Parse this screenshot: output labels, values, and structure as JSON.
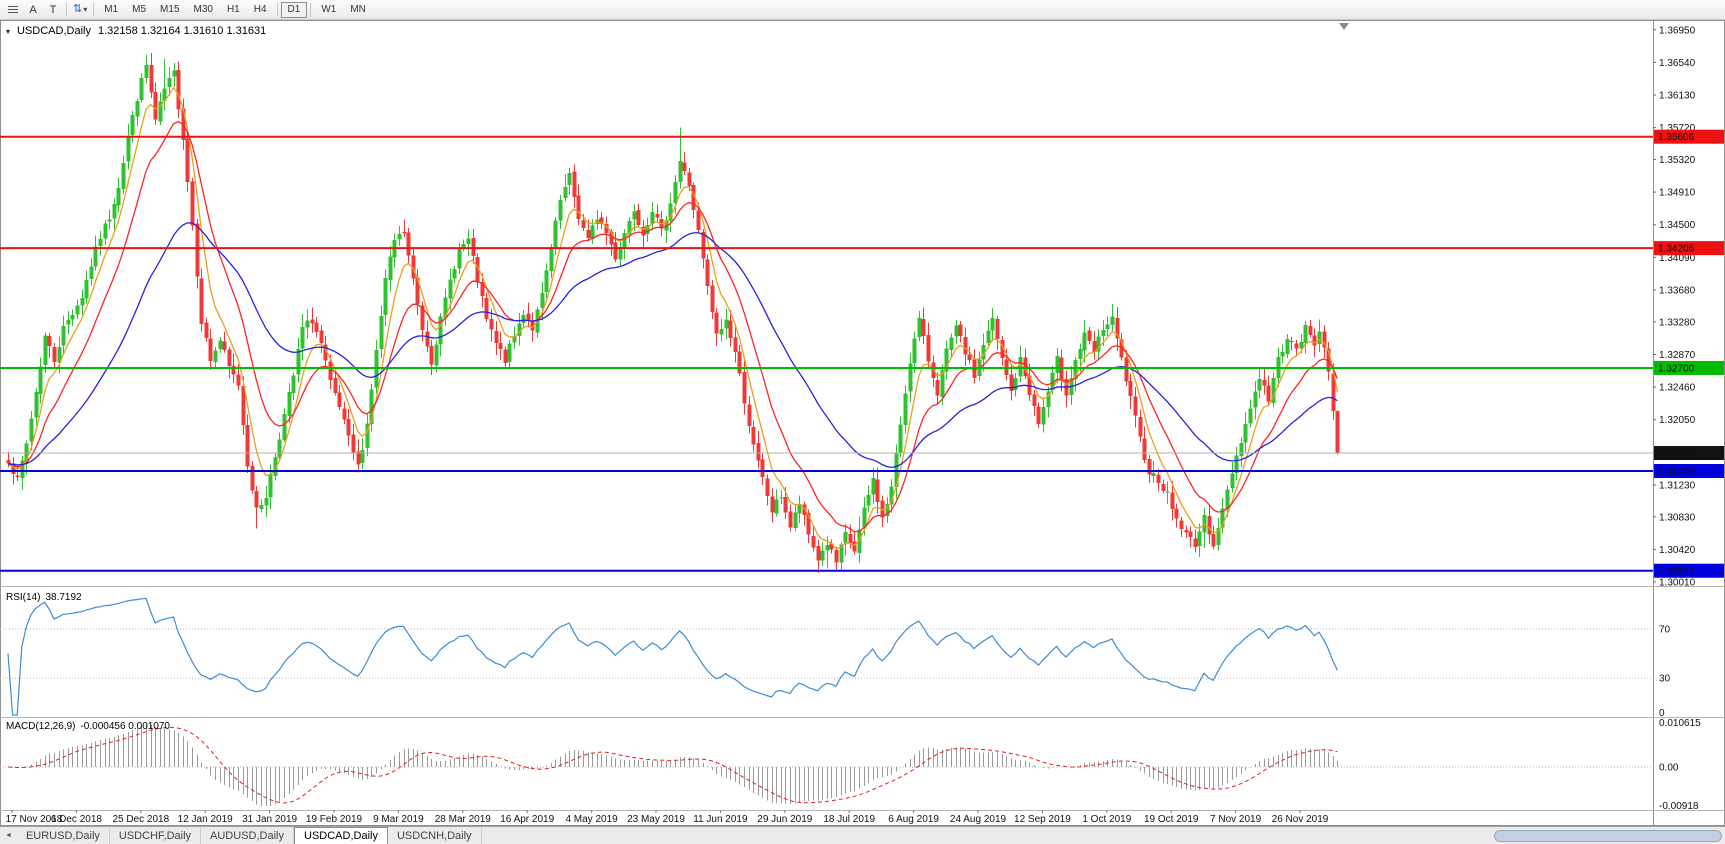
{
  "icons": {
    "cursor_arrows": "⇅",
    "dropdown_caret": "▾",
    "symbol_caret": "▾",
    "tab_nav_left": "◄"
  },
  "toolbar": {
    "tool_a": "A",
    "tool_t": "T",
    "timeframes": [
      "M1",
      "M5",
      "M15",
      "M30",
      "H1",
      "H4",
      "D1",
      "W1",
      "MN"
    ],
    "active_timeframe": "D1"
  },
  "chart": {
    "symbol_period": "USDCAD,Daily",
    "ohlc_text": "1.32158 1.32164 1.31610 1.31631",
    "open": "1.32158",
    "high": "1.32164",
    "low": "1.31610",
    "close": "1.31631"
  },
  "rsi": {
    "name": "RSI(14)",
    "value": "38.7192",
    "scale_labels": [
      "70",
      "30",
      "0"
    ],
    "levels": [
      70,
      30
    ],
    "color": "#3d8bd4"
  },
  "macd": {
    "name": "MACD(12,26,9)",
    "values": "-0.000456 0.001070",
    "scale_labels": [
      "0.010615",
      "0.00",
      "-0.00918"
    ],
    "scale_max": 0.010615,
    "scale_min": -0.00918,
    "hist_color": "#9a9a9a",
    "signal_color": "#e02020"
  },
  "price_axis": {
    "ticks": [
      "1.36950",
      "1.36540",
      "1.36130",
      "1.35720",
      "1.35320",
      "1.34910",
      "1.34500",
      "1.34090",
      "1.33680",
      "1.33280",
      "1.32870",
      "1.32460",
      "1.32050",
      "1.31640",
      "1.31230",
      "1.30830",
      "1.30420",
      "1.30010"
    ]
  },
  "date_axis": {
    "labels": [
      "17 Nov 2018",
      "6 Dec 2018",
      "25 Dec 2018",
      "12 Jan 2019",
      "31 Jan 2019",
      "19 Feb 2019",
      "9 Mar 2019",
      "28 Mar 2019",
      "16 Apr 2019",
      "4 May 2019",
      "23 May 2019",
      "11 Jun 2019",
      "29 Jun 2019",
      "18 Jul 2019",
      "6 Aug 2019",
      "24 Aug 2019",
      "12 Sep 2019",
      "1 Oct 2019",
      "19 Oct 2019",
      "7 Nov 2019",
      "26 Nov 2019"
    ]
  },
  "tabs": {
    "items": [
      "EURUSD,Daily",
      "USDCHF,Daily",
      "AUDUSD,Daily",
      "USDCAD,Daily",
      "USDCNH,Daily"
    ],
    "active_index": 3
  },
  "chart_data": {
    "type": "candlestick",
    "symbol": "USDCAD",
    "period": "Daily",
    "bars": 290,
    "up_color": "#2fc12f",
    "down_color": "#f03838",
    "price_range": {
      "top": 1.3706,
      "bottom": 1.2996
    },
    "levels": [
      {
        "value": 1.35606,
        "label": "1.35606",
        "color": "#ee1111",
        "width": 2
      },
      {
        "value": 1.34206,
        "label": "1.34206",
        "color": "#ee1111",
        "width": 2
      },
      {
        "value": 1.327,
        "label": "1.32700",
        "color": "#00bb00",
        "width": 2
      },
      {
        "value": 1.31405,
        "label": "1.31405",
        "color": "#0000dd",
        "width": 2
      },
      {
        "value": 1.30152,
        "label": "1.30152",
        "color": "#0000dd",
        "width": 2
      }
    ],
    "current_price": {
      "value": 1.31631,
      "label": "1.31631",
      "line_color": "#b0b0b0",
      "flag_color": "#111111"
    },
    "moving_averages": [
      {
        "period": 6,
        "type": "ema",
        "color": "#e8a01e"
      },
      {
        "period": 14,
        "type": "ema",
        "color": "#ff2424"
      },
      {
        "period": 40,
        "type": "ema",
        "color": "#2424dd"
      }
    ],
    "close_anchors": [
      [
        0,
        1.3155
      ],
      [
        2,
        1.3128
      ],
      [
        4,
        1.3175
      ],
      [
        6,
        1.324
      ],
      [
        8,
        1.331
      ],
      [
        10,
        1.328
      ],
      [
        12,
        1.332
      ],
      [
        14,
        1.334
      ],
      [
        16,
        1.336
      ],
      [
        18,
        1.34
      ],
      [
        20,
        1.3435
      ],
      [
        22,
        1.346
      ],
      [
        24,
        1.35
      ],
      [
        26,
        1.356
      ],
      [
        28,
        1.361
      ],
      [
        30,
        1.365
      ],
      [
        32,
        1.358
      ],
      [
        34,
        1.362
      ],
      [
        36,
        1.364
      ],
      [
        38,
        1.356
      ],
      [
        40,
        1.345
      ],
      [
        42,
        1.333
      ],
      [
        44,
        1.328
      ],
      [
        46,
        1.3305
      ],
      [
        48,
        1.327
      ],
      [
        50,
        1.325
      ],
      [
        52,
        1.315
      ],
      [
        54,
        1.309
      ],
      [
        56,
        1.311
      ],
      [
        58,
        1.316
      ],
      [
        60,
        1.321
      ],
      [
        62,
        1.326
      ],
      [
        64,
        1.332
      ],
      [
        66,
        1.333
      ],
      [
        68,
        1.33
      ],
      [
        70,
        1.325
      ],
      [
        72,
        1.322
      ],
      [
        74,
        1.318
      ],
      [
        76,
        1.3145
      ],
      [
        78,
        1.32
      ],
      [
        80,
        1.329
      ],
      [
        82,
        1.338
      ],
      [
        84,
        1.343
      ],
      [
        86,
        1.344
      ],
      [
        88,
        1.338
      ],
      [
        90,
        1.332
      ],
      [
        92,
        1.328
      ],
      [
        94,
        1.333
      ],
      [
        96,
        1.338
      ],
      [
        98,
        1.342
      ],
      [
        100,
        1.343
      ],
      [
        102,
        1.338
      ],
      [
        104,
        1.333
      ],
      [
        106,
        1.33
      ],
      [
        108,
        1.328
      ],
      [
        110,
        1.331
      ],
      [
        112,
        1.334
      ],
      [
        114,
        1.332
      ],
      [
        116,
        1.336
      ],
      [
        118,
        1.342
      ],
      [
        120,
        1.348
      ],
      [
        122,
        1.351
      ],
      [
        124,
        1.346
      ],
      [
        126,
        1.343
      ],
      [
        128,
        1.346
      ],
      [
        130,
        1.344
      ],
      [
        132,
        1.341
      ],
      [
        134,
        1.344
      ],
      [
        136,
        1.347
      ],
      [
        138,
        1.344
      ],
      [
        140,
        1.347
      ],
      [
        142,
        1.344
      ],
      [
        144,
        1.348
      ],
      [
        146,
        1.353
      ],
      [
        148,
        1.35
      ],
      [
        150,
        1.344
      ],
      [
        152,
        1.337
      ],
      [
        154,
        1.331
      ],
      [
        156,
        1.333
      ],
      [
        158,
        1.329
      ],
      [
        160,
        1.323
      ],
      [
        162,
        1.317
      ],
      [
        164,
        1.313
      ],
      [
        166,
        1.309
      ],
      [
        168,
        1.311
      ],
      [
        170,
        1.307
      ],
      [
        172,
        1.31
      ],
      [
        174,
        1.306
      ],
      [
        176,
        1.303
      ],
      [
        178,
        1.305
      ],
      [
        180,
        1.3025
      ],
      [
        182,
        1.306
      ],
      [
        184,
        1.304
      ],
      [
        186,
        1.309
      ],
      [
        188,
        1.313
      ],
      [
        190,
        1.308
      ],
      [
        192,
        1.312
      ],
      [
        194,
        1.32
      ],
      [
        196,
        1.328
      ],
      [
        198,
        1.333
      ],
      [
        200,
        1.328
      ],
      [
        202,
        1.324
      ],
      [
        204,
        1.329
      ],
      [
        206,
        1.332
      ],
      [
        208,
        1.329
      ],
      [
        210,
        1.326
      ],
      [
        212,
        1.33
      ],
      [
        214,
        1.333
      ],
      [
        216,
        1.328
      ],
      [
        218,
        1.324
      ],
      [
        220,
        1.328
      ],
      [
        222,
        1.324
      ],
      [
        224,
        1.32
      ],
      [
        226,
        1.324
      ],
      [
        228,
        1.328
      ],
      [
        230,
        1.324
      ],
      [
        232,
        1.328
      ],
      [
        234,
        1.331
      ],
      [
        236,
        1.329
      ],
      [
        238,
        1.332
      ],
      [
        240,
        1.333
      ],
      [
        242,
        1.328
      ],
      [
        244,
        1.323
      ],
      [
        246,
        1.318
      ],
      [
        248,
        1.314
      ],
      [
        250,
        1.313
      ],
      [
        252,
        1.311
      ],
      [
        254,
        1.308
      ],
      [
        256,
        1.306
      ],
      [
        258,
        1.305
      ],
      [
        260,
        1.308
      ],
      [
        262,
        1.305
      ],
      [
        264,
        1.309
      ],
      [
        266,
        1.314
      ],
      [
        268,
        1.318
      ],
      [
        270,
        1.322
      ],
      [
        272,
        1.326
      ],
      [
        274,
        1.323
      ],
      [
        276,
        1.328
      ],
      [
        278,
        1.331
      ],
      [
        280,
        1.329
      ],
      [
        282,
        1.332
      ],
      [
        284,
        1.33
      ],
      [
        285,
        1.332
      ],
      [
        286,
        1.33
      ],
      [
        287,
        1.326
      ],
      [
        288,
        1.32158
      ],
      [
        289,
        1.31631
      ]
    ],
    "overrides": {
      "30": {
        "h": 1.3664
      },
      "34": {
        "h": 1.3658
      },
      "54": {
        "l": 1.3068
      },
      "122": {
        "h": 1.3521
      },
      "146": {
        "h": 1.3572
      },
      "178": {
        "l": 1.3018
      },
      "180": {
        "l": 1.3016
      },
      "260": {
        "l": 1.3044
      },
      "288": {
        "c": 1.32158
      },
      "289": {
        "o": 1.32158,
        "h": 1.32164,
        "l": 1.3161,
        "c": 1.31631
      }
    },
    "rsi": {
      "period": 14,
      "last": 38.7192
    },
    "macd": {
      "fast": 12,
      "slow": 26,
      "signal": 9,
      "last_main": -0.000456,
      "last_signal": 0.00107
    }
  }
}
